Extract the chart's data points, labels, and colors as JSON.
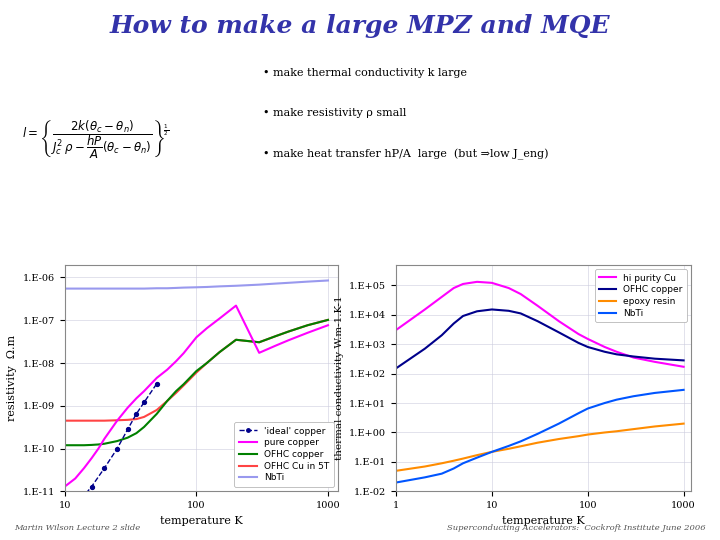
{
  "title": "How to make a large MPZ and MQE",
  "title_color": "#3333AA",
  "title_fontsize": 18,
  "bullet_points": [
    "make thermal conductivity k large",
    "make resistivity ρ small",
    "make heat transfer hP/A  large  (but ⇒low J_eng)"
  ],
  "footer_left": "Martin Wilson Lecture 2 slide",
  "footer_right": "Superconducting Accelerators:  Cockroft Institute June 2006",
  "bg_color": "#ffffff",
  "plot1": {
    "ylabel": "resistivity  Ω.m",
    "xlabel": "temperature K",
    "yticks": [
      "1.E-11",
      "1.E-10",
      "1.E-09",
      "1.E-08",
      "1.E-07",
      "1.E-06"
    ],
    "yvals": [
      1e-11,
      1e-10,
      1e-09,
      1e-08,
      1e-07,
      1e-06
    ],
    "xticks": [
      "10",
      "100",
      "1000"
    ],
    "xvals": [
      10,
      100,
      1000
    ],
    "series": [
      {
        "label": "'ideal' copper",
        "color": "#00008B"
      },
      {
        "label": "pure copper",
        "color": "#FF00FF"
      },
      {
        "label": "OFHC copper",
        "color": "#008000"
      },
      {
        "label": "OFHC Cu in 5T",
        "color": "#FF4444"
      },
      {
        "label": "NbTi",
        "color": "#9999EE"
      }
    ]
  },
  "plot2": {
    "ylabel": "thermal conductivity W.m-1.K-1",
    "xlabel": "temperature K",
    "yticks": [
      "1.E-02",
      "1.E-01",
      "1.E+00",
      "1.E+01",
      "1.E+02",
      "1.E+03",
      "1.E+04",
      "1.E+05"
    ],
    "yvals": [
      0.01,
      0.1,
      1,
      10,
      100,
      1000,
      10000,
      100000
    ],
    "xticks": [
      "1",
      "10",
      "100",
      "1000"
    ],
    "xvals": [
      1,
      10,
      100,
      1000
    ],
    "series": [
      {
        "label": "hi purity Cu",
        "color": "#FF00FF"
      },
      {
        "label": "OFHC copper",
        "color": "#00008B"
      },
      {
        "label": "epoxy resin",
        "color": "#FF8C00"
      },
      {
        "label": "NbTi",
        "color": "#0055FF"
      }
    ]
  }
}
